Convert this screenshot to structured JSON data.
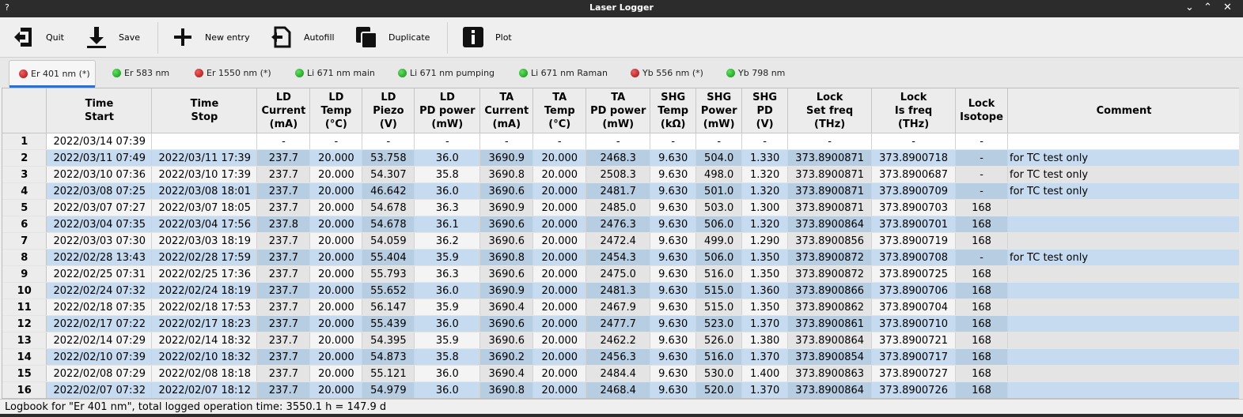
{
  "window": {
    "title": "Laser Logger",
    "help": "?",
    "minimize": "⌄",
    "maximize": "⌃",
    "close": "✕"
  },
  "toolbar": {
    "quit": "Quit",
    "save": "Save",
    "new_entry": "New entry",
    "autofill": "Autofill",
    "duplicate": "Duplicate",
    "plot": "Plot"
  },
  "tabs": [
    {
      "label": "Er 401 nm (*)",
      "status": "red"
    },
    {
      "label": "Er 583 nm",
      "status": "green"
    },
    {
      "label": "Er 1550 nm (*)",
      "status": "red"
    },
    {
      "label": "Li 671 nm main",
      "status": "green"
    },
    {
      "label": "Li 671 nm pumping",
      "status": "green"
    },
    {
      "label": "Li 671 nm Raman",
      "status": "green"
    },
    {
      "label": "Yb 556 nm (*)",
      "status": "red"
    },
    {
      "label": "Yb 798 nm",
      "status": "green"
    }
  ],
  "table": {
    "headers": [
      [
        "Time",
        "Start"
      ],
      [
        "Time",
        "Stop"
      ],
      [
        "LD",
        "Current",
        "(mA)"
      ],
      [
        "LD",
        "Temp",
        "(°C)"
      ],
      [
        "LD",
        "Piezo",
        "(V)"
      ],
      [
        "LD",
        "PD power",
        "(mW)"
      ],
      [
        "TA",
        "Current",
        "(mA)"
      ],
      [
        "TA",
        "Temp",
        "(°C)"
      ],
      [
        "TA",
        "PD power",
        "(mW)"
      ],
      [
        "SHG",
        "Temp",
        "(kΩ)"
      ],
      [
        "SHG",
        "Power",
        "(mW)"
      ],
      [
        "SHG",
        "PD",
        "(V)"
      ],
      [
        "Lock",
        "Set freq",
        "(THz)"
      ],
      [
        "Lock",
        "Is freq",
        "(THz)"
      ],
      [
        "Lock",
        "Isotope"
      ],
      [
        "Comment"
      ]
    ],
    "rows": [
      {
        "n": "1",
        "c": [
          "2022/03/14 07:39",
          "",
          "-",
          "-",
          "-",
          "-",
          "-",
          "-",
          "-",
          "-",
          "-",
          "-",
          "-",
          "-",
          "-",
          ""
        ]
      },
      {
        "n": "2",
        "c": [
          "2022/03/11 07:49",
          "2022/03/11 17:39",
          "237.7",
          "20.000",
          "53.758",
          "36.0",
          "3690.9",
          "20.000",
          "2468.3",
          "9.630",
          "504.0",
          "1.330",
          "373.8900871",
          "373.8900718",
          "-",
          "for TC test only"
        ]
      },
      {
        "n": "3",
        "c": [
          "2022/03/10 07:36",
          "2022/03/10 17:39",
          "237.7",
          "20.000",
          "54.307",
          "35.8",
          "3690.8",
          "20.000",
          "2508.3",
          "9.630",
          "498.0",
          "1.320",
          "373.8900871",
          "373.8900687",
          "-",
          "for TC test only"
        ]
      },
      {
        "n": "4",
        "c": [
          "2022/03/08 07:25",
          "2022/03/08 18:01",
          "237.7",
          "20.000",
          "46.642",
          "36.0",
          "3690.6",
          "20.000",
          "2481.7",
          "9.630",
          "501.0",
          "1.320",
          "373.8900871",
          "373.8900709",
          "-",
          "for TC test only"
        ]
      },
      {
        "n": "5",
        "c": [
          "2022/03/07 07:27",
          "2022/03/07 18:05",
          "237.7",
          "20.000",
          "54.678",
          "36.3",
          "3690.9",
          "20.000",
          "2485.0",
          "9.630",
          "503.0",
          "1.300",
          "373.8900871",
          "373.8900703",
          "168",
          ""
        ]
      },
      {
        "n": "6",
        "c": [
          "2022/03/04 07:35",
          "2022/03/04 17:56",
          "237.8",
          "20.000",
          "54.678",
          "36.1",
          "3690.6",
          "20.000",
          "2476.3",
          "9.630",
          "506.0",
          "1.320",
          "373.8900864",
          "373.8900701",
          "168",
          ""
        ]
      },
      {
        "n": "7",
        "c": [
          "2022/03/03 07:30",
          "2022/03/03 18:19",
          "237.7",
          "20.000",
          "54.059",
          "36.2",
          "3690.6",
          "20.000",
          "2472.4",
          "9.630",
          "499.0",
          "1.290",
          "373.8900856",
          "373.8900719",
          "168",
          ""
        ]
      },
      {
        "n": "8",
        "c": [
          "2022/02/28 13:43",
          "2022/02/28 17:59",
          "237.7",
          "20.000",
          "55.404",
          "35.9",
          "3690.8",
          "20.000",
          "2454.3",
          "9.630",
          "506.0",
          "1.350",
          "373.8900872",
          "373.8900708",
          "-",
          "for TC test only"
        ]
      },
      {
        "n": "9",
        "c": [
          "2022/02/25 07:31",
          "2022/02/25 17:36",
          "237.7",
          "20.000",
          "55.793",
          "36.3",
          "3690.6",
          "20.000",
          "2475.0",
          "9.630",
          "516.0",
          "1.350",
          "373.8900872",
          "373.8900725",
          "168",
          ""
        ]
      },
      {
        "n": "10",
        "c": [
          "2022/02/24 07:32",
          "2022/02/24 18:19",
          "237.7",
          "20.000",
          "55.652",
          "36.0",
          "3690.9",
          "20.000",
          "2481.3",
          "9.630",
          "515.0",
          "1.360",
          "373.8900866",
          "373.8900706",
          "168",
          ""
        ]
      },
      {
        "n": "11",
        "c": [
          "2022/02/18 07:35",
          "2022/02/18 17:53",
          "237.7",
          "20.000",
          "56.147",
          "35.9",
          "3690.4",
          "20.000",
          "2467.9",
          "9.630",
          "515.0",
          "1.350",
          "373.8900862",
          "373.8900704",
          "168",
          ""
        ]
      },
      {
        "n": "12",
        "c": [
          "2022/02/17 07:22",
          "2022/02/17 18:23",
          "237.7",
          "20.000",
          "55.439",
          "36.0",
          "3690.6",
          "20.000",
          "2477.7",
          "9.630",
          "523.0",
          "1.370",
          "373.8900861",
          "373.8900710",
          "168",
          ""
        ]
      },
      {
        "n": "13",
        "c": [
          "2022/02/14 07:29",
          "2022/02/14 18:32",
          "237.7",
          "20.000",
          "54.395",
          "35.9",
          "3690.6",
          "20.000",
          "2462.2",
          "9.630",
          "526.0",
          "1.380",
          "373.8900864",
          "373.8900721",
          "168",
          ""
        ]
      },
      {
        "n": "14",
        "c": [
          "2022/02/10 07:39",
          "2022/02/10 18:32",
          "237.7",
          "20.000",
          "54.873",
          "35.8",
          "3690.2",
          "20.000",
          "2456.3",
          "9.630",
          "516.0",
          "1.370",
          "373.8900854",
          "373.8900717",
          "168",
          ""
        ]
      },
      {
        "n": "15",
        "c": [
          "2022/02/08 07:29",
          "2022/02/08 18:18",
          "237.7",
          "20.000",
          "55.121",
          "36.0",
          "3690.4",
          "20.000",
          "2484.4",
          "9.630",
          "530.0",
          "1.400",
          "373.8900863",
          "373.8900727",
          "168",
          ""
        ]
      },
      {
        "n": "16",
        "c": [
          "2022/02/07 07:32",
          "2022/02/07 18:12",
          "237.7",
          "20.000",
          "54.979",
          "36.0",
          "3690.8",
          "20.000",
          "2468.4",
          "9.630",
          "520.0",
          "1.370",
          "373.8900864",
          "373.8900726",
          "168",
          ""
        ]
      }
    ]
  },
  "status": {
    "text": "Logbook for \"Er 401 nm\", total logged operation time: 3550.1 h = 147.9 d"
  }
}
